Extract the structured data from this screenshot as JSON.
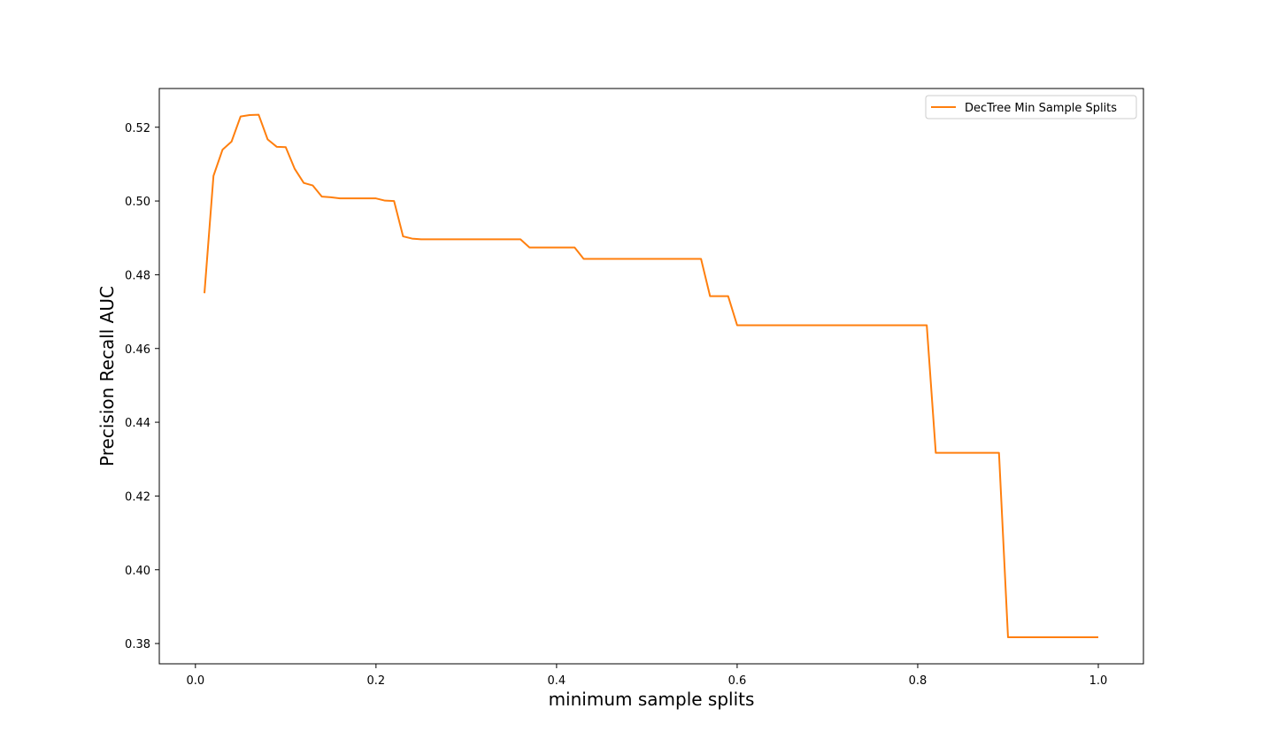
{
  "chart_data": {
    "type": "line",
    "title": "",
    "xlabel": "minimum sample splits",
    "ylabel": "Precision Recall AUC",
    "xlim": [
      -0.04,
      1.05
    ],
    "ylim": [
      0.3745,
      0.5305
    ],
    "xticks": [
      0.0,
      0.2,
      0.4,
      0.6,
      0.8,
      1.0
    ],
    "xtick_labels": [
      "0.0",
      "0.2",
      "0.4",
      "0.6",
      "0.8",
      "1.0"
    ],
    "yticks": [
      0.38,
      0.4,
      0.42,
      0.44,
      0.46,
      0.48,
      0.5,
      0.52
    ],
    "ytick_labels": [
      "0.38",
      "0.40",
      "0.42",
      "0.44",
      "0.46",
      "0.48",
      "0.50",
      "0.52"
    ],
    "grid": false,
    "legend_position": "top-right",
    "series": [
      {
        "name": "DecTree Min Sample Splits",
        "color": "#ff7f0e",
        "x": [
          0.01,
          0.02,
          0.03,
          0.04,
          0.05,
          0.06,
          0.07,
          0.08,
          0.09,
          0.1,
          0.11,
          0.12,
          0.13,
          0.14,
          0.15,
          0.16,
          0.17,
          0.18,
          0.19,
          0.2,
          0.21,
          0.22,
          0.23,
          0.24,
          0.25,
          0.3,
          0.36,
          0.37,
          0.42,
          0.43,
          0.56,
          0.57,
          0.59,
          0.6,
          0.81,
          0.82,
          0.89,
          0.9,
          1.0
        ],
        "y": [
          0.475,
          0.5068,
          0.5139,
          0.5161,
          0.5229,
          0.5233,
          0.5234,
          0.5167,
          0.5147,
          0.5146,
          0.5087,
          0.5049,
          0.5042,
          0.5012,
          0.501,
          0.5007,
          0.5007,
          0.5007,
          0.5007,
          0.5007,
          0.5001,
          0.5,
          0.4904,
          0.4898,
          0.4896,
          0.4896,
          0.4896,
          0.4874,
          0.4874,
          0.4843,
          0.4843,
          0.4742,
          0.4742,
          0.4663,
          0.4663,
          0.4317,
          0.4317,
          0.3817,
          0.3817
        ]
      }
    ]
  }
}
